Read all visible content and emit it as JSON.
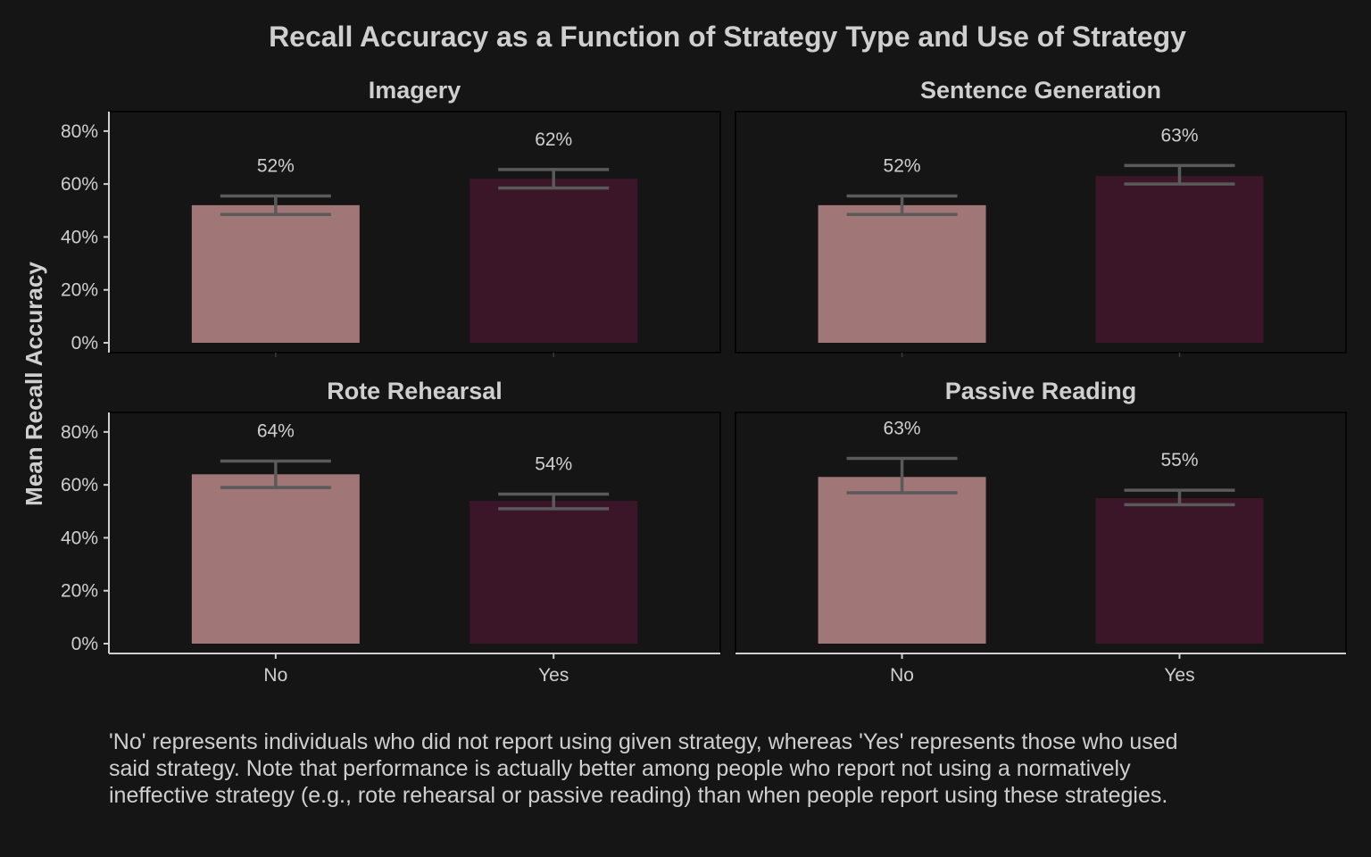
{
  "chart_data": {
    "type": "bar",
    "title": "Recall Accuracy as a Function of Strategy Type and Use of Strategy",
    "ylabel": "Mean Recall Accuracy",
    "xlabel": "",
    "categories": [
      "No",
      "Yes"
    ],
    "ylim": [
      0,
      0.84
    ],
    "yticks": [
      0,
      0.2,
      0.4,
      0.6,
      0.8
    ],
    "ytick_labels": [
      "0%",
      "20%",
      "40%",
      "60%",
      "80%"
    ],
    "grid": false,
    "colors": {
      "No": "#a07676",
      "Yes": "#3a1628",
      "errorbar": "#5a5a5a",
      "background": "#151515",
      "text": "#cfcfcf"
    },
    "panels": [
      {
        "title": "Imagery",
        "values": [
          0.52,
          0.62
        ],
        "value_labels": [
          "52%",
          "62%"
        ],
        "error_low": [
          0.485,
          0.585
        ],
        "error_high": [
          0.555,
          0.655
        ]
      },
      {
        "title": "Sentence Generation",
        "values": [
          0.52,
          0.63
        ],
        "value_labels": [
          "52%",
          "63%"
        ],
        "error_low": [
          0.485,
          0.6
        ],
        "error_high": [
          0.555,
          0.67
        ]
      },
      {
        "title": "Rote Rehearsal",
        "values": [
          0.64,
          0.54
        ],
        "value_labels": [
          "64%",
          "54%"
        ],
        "error_low": [
          0.59,
          0.51
        ],
        "error_high": [
          0.69,
          0.565
        ]
      },
      {
        "title": "Passive Reading",
        "values": [
          0.63,
          0.55
        ],
        "value_labels": [
          "63%",
          "55%"
        ],
        "error_low": [
          0.57,
          0.525
        ],
        "error_high": [
          0.7,
          0.58
        ]
      }
    ]
  },
  "caption": {
    "line1": "'No' represents individuals who did not report using given strategy, whereas 'Yes' represents those who used",
    "line2": "said strategy. Note that performance is actually better among people who report not using a normatively",
    "line3": "ineffective strategy (e.g., rote rehearsal or passive reading) than when people report using these strategies."
  }
}
